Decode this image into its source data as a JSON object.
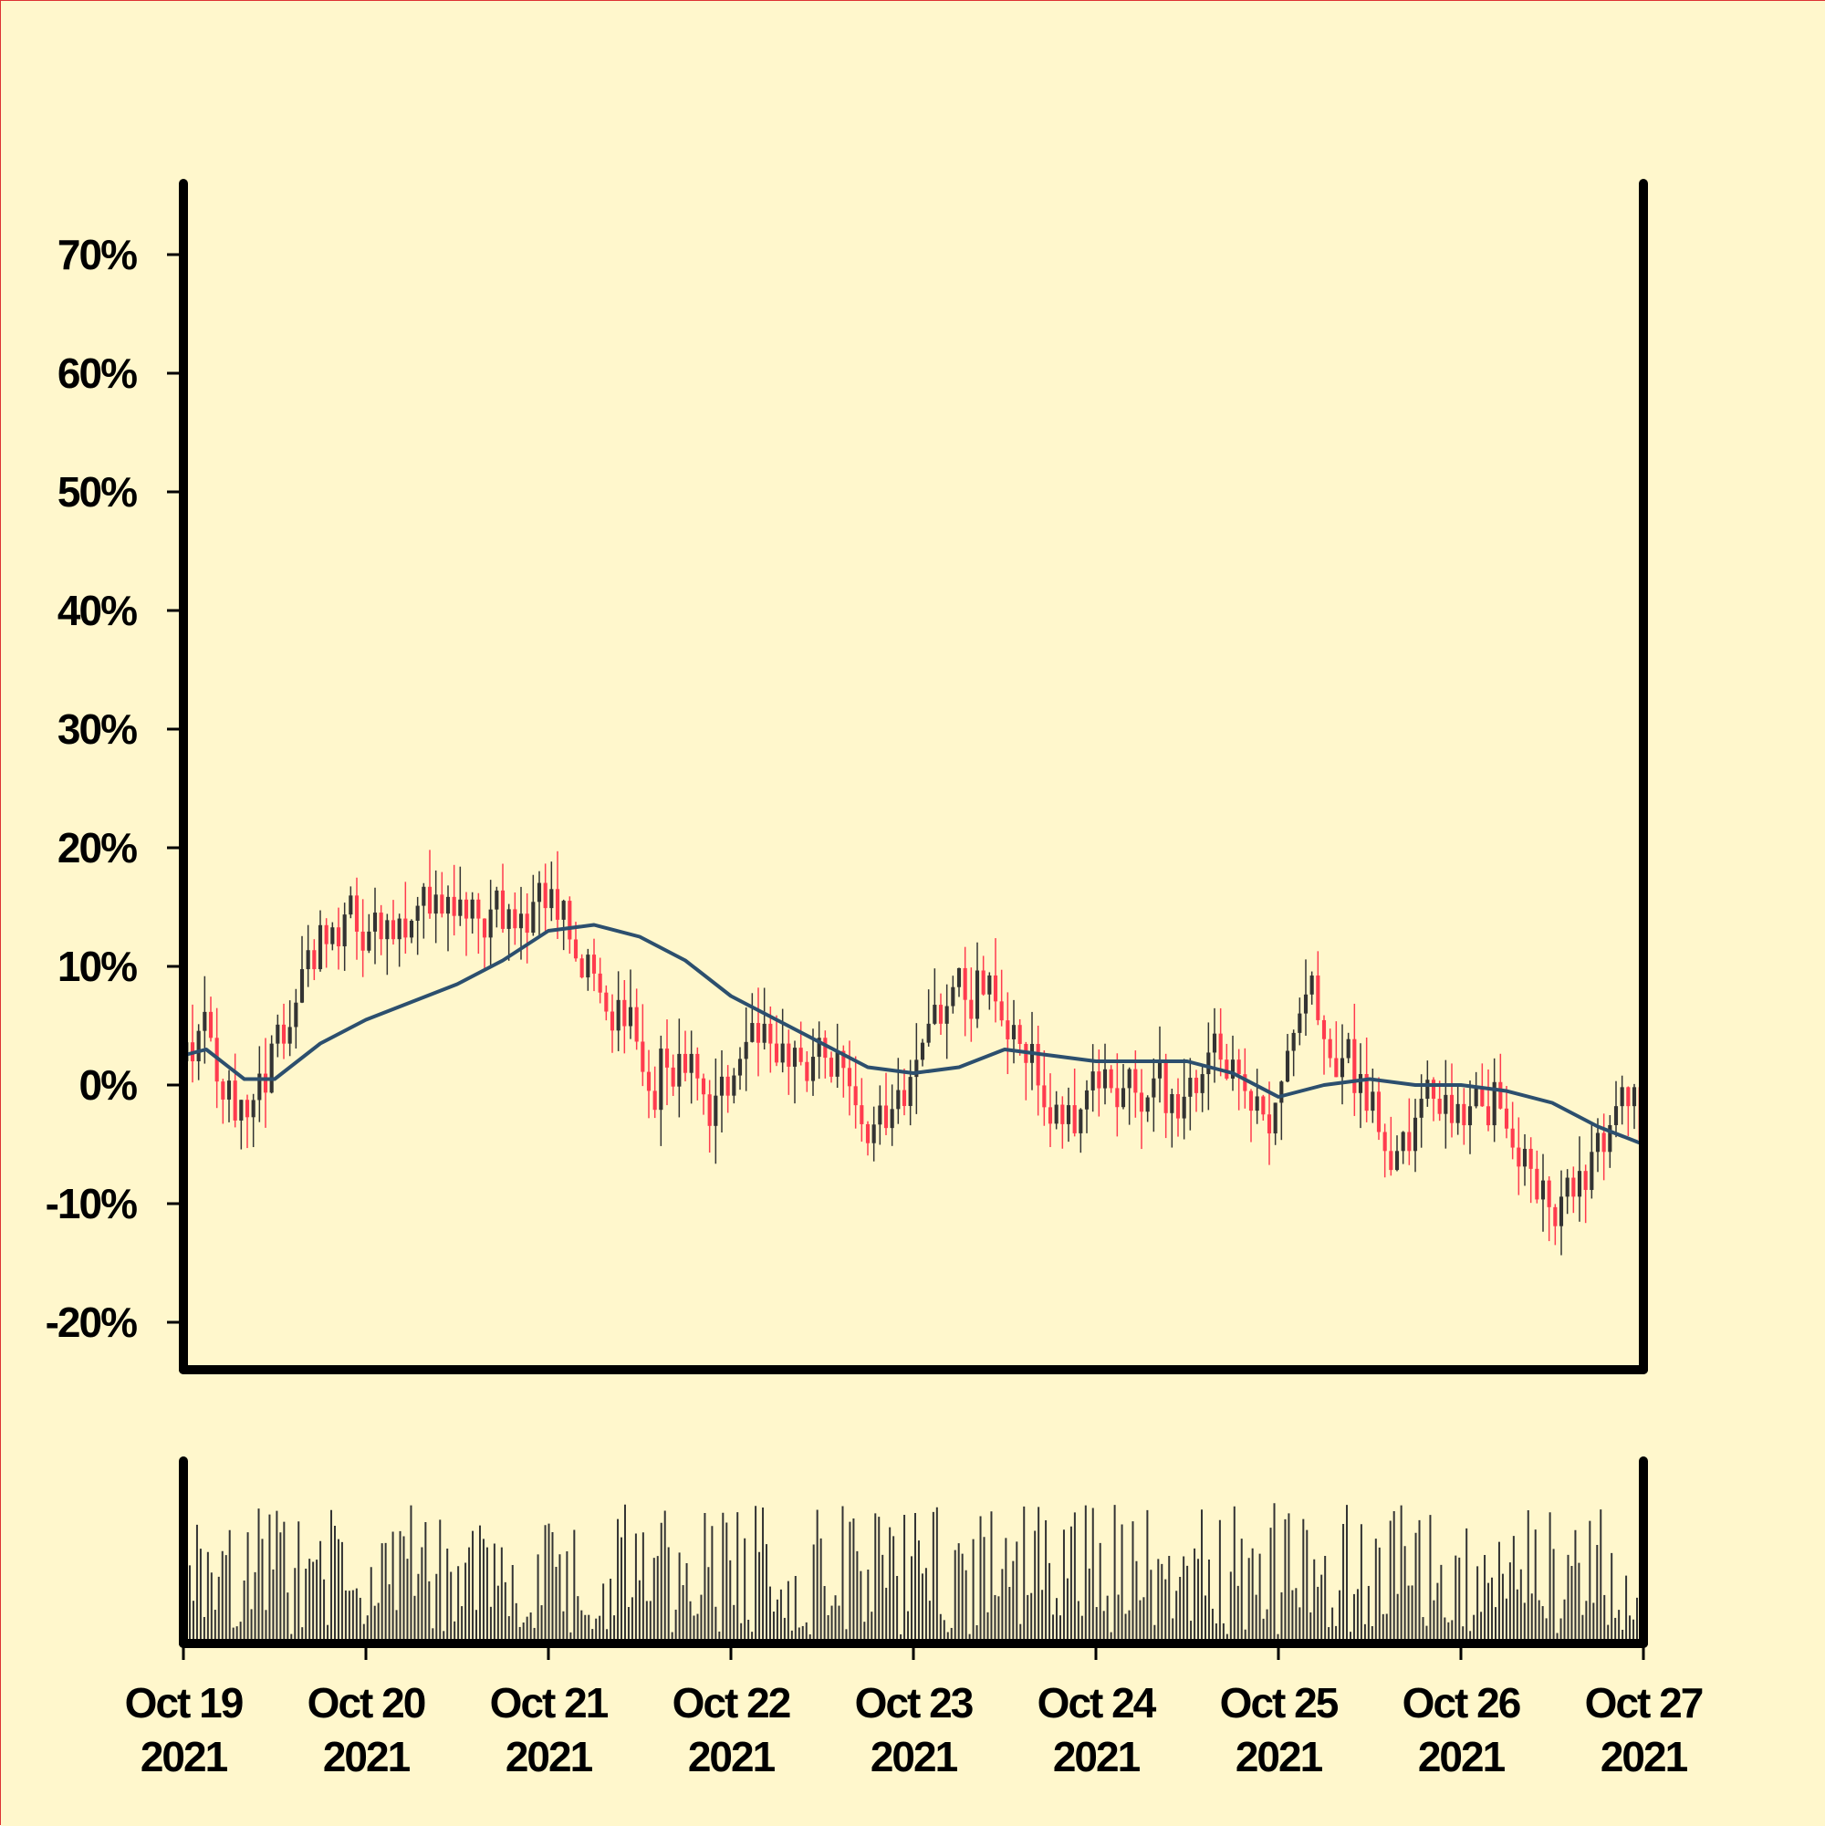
{
  "chart_data": {
    "type": "candlestick",
    "panels": [
      "price",
      "volume"
    ],
    "colors": {
      "background": "#fff7cc",
      "up": "#333333",
      "down": "#ff3b4e",
      "moving_average": "#2c4f6e",
      "volume": "#333333",
      "axis": "#000000",
      "frame": "#d93a3a"
    },
    "y_axis": {
      "unit": "%",
      "ylim": [
        -24,
        76
      ],
      "ticks": [
        -20,
        -10,
        0,
        10,
        20,
        30,
        40,
        50,
        60,
        70
      ],
      "tick_labels": [
        "-20%",
        "-10%",
        "0%",
        "10%",
        "20%",
        "30%",
        "40%",
        "50%",
        "60%",
        "70%"
      ]
    },
    "x_axis": {
      "range": [
        "2021-10-19",
        "2021-10-27"
      ],
      "tick_labels": [
        {
          "date": "2021-10-19",
          "line1": "Oct 19",
          "line2": "2021"
        },
        {
          "date": "2021-10-20",
          "line1": "Oct 20",
          "line2": "2021"
        },
        {
          "date": "2021-10-21",
          "line1": "Oct 21",
          "line2": "2021"
        },
        {
          "date": "2021-10-22",
          "line1": "Oct 22",
          "line2": "2021"
        },
        {
          "date": "2021-10-23",
          "line1": "Oct 23",
          "line2": "2021"
        },
        {
          "date": "2021-10-24",
          "line1": "Oct 24",
          "line2": "2021"
        },
        {
          "date": "2021-10-25",
          "line1": "Oct 25",
          "line2": "2021"
        },
        {
          "date": "2021-10-26",
          "line1": "Oct 26",
          "line2": "2021"
        },
        {
          "date": "2021-10-27",
          "line1": "Oct 27",
          "line2": "2021"
        }
      ]
    },
    "close_path_approx": [
      {
        "date": "2021-10-19 00:00",
        "value": 2
      },
      {
        "date": "2021-10-19 03:00",
        "value": 5
      },
      {
        "date": "2021-10-19 05:00",
        "value": -2
      },
      {
        "date": "2021-10-19 07:00",
        "value": -3
      },
      {
        "date": "2021-10-19 10:00",
        "value": 0
      },
      {
        "date": "2021-10-19 14:00",
        "value": 6
      },
      {
        "date": "2021-10-19 18:00",
        "value": 13
      },
      {
        "date": "2021-10-19 21:00",
        "value": 14
      },
      {
        "date": "2021-10-20 00:00",
        "value": 13
      },
      {
        "date": "2021-10-20 06:00",
        "value": 14
      },
      {
        "date": "2021-10-20 12:00",
        "value": 16
      },
      {
        "date": "2021-10-20 18:00",
        "value": 14
      },
      {
        "date": "2021-10-21 00:00",
        "value": 16
      },
      {
        "date": "2021-10-21 03:00",
        "value": 12
      },
      {
        "date": "2021-10-21 08:00",
        "value": 8
      },
      {
        "date": "2021-10-21 13:00",
        "value": 1
      },
      {
        "date": "2021-10-21 17:00",
        "value": 4
      },
      {
        "date": "2021-10-21 21:00",
        "value": -3
      },
      {
        "date": "2021-10-22 03:00",
        "value": 4
      },
      {
        "date": "2021-10-22 08:00",
        "value": 2
      },
      {
        "date": "2021-10-22 13:00",
        "value": 3
      },
      {
        "date": "2021-10-22 17:00",
        "value": -2
      },
      {
        "date": "2021-10-22 21:00",
        "value": -4
      },
      {
        "date": "2021-10-23 02:00",
        "value": 5
      },
      {
        "date": "2021-10-23 06:00",
        "value": 8
      },
      {
        "date": "2021-10-23 10:00",
        "value": 9
      },
      {
        "date": "2021-10-23 14:00",
        "value": 4
      },
      {
        "date": "2021-10-23 17:00",
        "value": -2
      },
      {
        "date": "2021-10-23 20:00",
        "value": -4
      },
      {
        "date": "2021-10-24 00:00",
        "value": -1
      },
      {
        "date": "2021-10-24 06:00",
        "value": 0
      },
      {
        "date": "2021-10-24 11:00",
        "value": -2
      },
      {
        "date": "2021-10-24 15:00",
        "value": 2
      },
      {
        "date": "2021-10-24 20:00",
        "value": -1
      },
      {
        "date": "2021-10-24 23:00",
        "value": -2
      },
      {
        "date": "2021-10-25 04:00",
        "value": 8
      },
      {
        "date": "2021-10-25 08:00",
        "value": 3
      },
      {
        "date": "2021-10-25 12:00",
        "value": -2
      },
      {
        "date": "2021-10-25 16:00",
        "value": -6
      },
      {
        "date": "2021-10-25 20:00",
        "value": -1
      },
      {
        "date": "2021-10-26 00:00",
        "value": -4
      },
      {
        "date": "2021-10-26 04:00",
        "value": 0
      },
      {
        "date": "2021-10-26 08:00",
        "value": -5
      },
      {
        "date": "2021-10-26 12:00",
        "value": -12
      },
      {
        "date": "2021-10-26 16:00",
        "value": -7
      },
      {
        "date": "2021-10-26 20:00",
        "value": -4
      },
      {
        "date": "2021-10-26 22:00",
        "value": -1
      },
      {
        "date": "2021-10-27 00:00",
        "value": -6
      }
    ],
    "moving_average_approx": [
      {
        "date": "2021-10-19 00:00",
        "value": 2.5
      },
      {
        "date": "2021-10-19 03:00",
        "value": 3
      },
      {
        "date": "2021-10-19 08:00",
        "value": 0.5
      },
      {
        "date": "2021-10-19 12:00",
        "value": 0.5
      },
      {
        "date": "2021-10-19 18:00",
        "value": 3.5
      },
      {
        "date": "2021-10-20 00:00",
        "value": 5.5
      },
      {
        "date": "2021-10-20 06:00",
        "value": 7
      },
      {
        "date": "2021-10-20 12:00",
        "value": 8.5
      },
      {
        "date": "2021-10-20 18:00",
        "value": 10.5
      },
      {
        "date": "2021-10-21 00:00",
        "value": 13
      },
      {
        "date": "2021-10-21 06:00",
        "value": 13.5
      },
      {
        "date": "2021-10-21 12:00",
        "value": 12.5
      },
      {
        "date": "2021-10-21 18:00",
        "value": 10.5
      },
      {
        "date": "2021-10-22 00:00",
        "value": 7.5
      },
      {
        "date": "2021-10-22 06:00",
        "value": 5.5
      },
      {
        "date": "2021-10-22 12:00",
        "value": 3.5
      },
      {
        "date": "2021-10-22 18:00",
        "value": 1.5
      },
      {
        "date": "2021-10-23 00:00",
        "value": 1
      },
      {
        "date": "2021-10-23 06:00",
        "value": 1.5
      },
      {
        "date": "2021-10-23 12:00",
        "value": 3
      },
      {
        "date": "2021-10-23 18:00",
        "value": 2.5
      },
      {
        "date": "2021-10-24 00:00",
        "value": 2
      },
      {
        "date": "2021-10-24 06:00",
        "value": 2
      },
      {
        "date": "2021-10-24 12:00",
        "value": 2
      },
      {
        "date": "2021-10-24 18:00",
        "value": 1
      },
      {
        "date": "2021-10-25 00:00",
        "value": -1
      },
      {
        "date": "2021-10-25 06:00",
        "value": 0
      },
      {
        "date": "2021-10-25 12:00",
        "value": 0.5
      },
      {
        "date": "2021-10-25 18:00",
        "value": 0
      },
      {
        "date": "2021-10-26 00:00",
        "value": 0
      },
      {
        "date": "2021-10-26 06:00",
        "value": -0.5
      },
      {
        "date": "2021-10-26 12:00",
        "value": -1.5
      },
      {
        "date": "2021-10-26 18:00",
        "value": -3.5
      },
      {
        "date": "2021-10-27 00:00",
        "value": -5
      }
    ],
    "volume_panel": {
      "ticks": [],
      "bar_count_approx": 400
    }
  }
}
